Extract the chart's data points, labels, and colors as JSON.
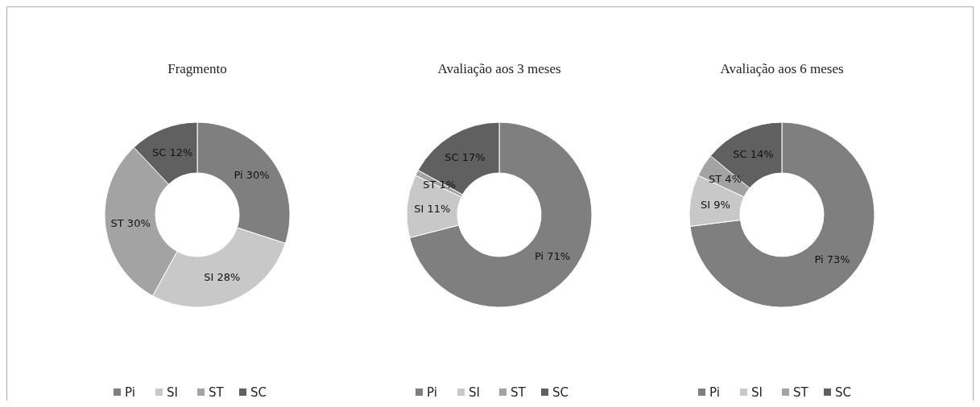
{
  "chart_data": [
    {
      "type": "donut",
      "title": "Fragmento",
      "categories": [
        "Pi",
        "SI",
        "ST",
        "SC"
      ],
      "values": [
        30,
        28,
        30,
        12
      ],
      "value_labels": [
        "Pi 30%",
        "SI 28%",
        "ST 30%",
        "SC 12%"
      ],
      "colors": [
        "#7f7f7f",
        "#c8c8c8",
        "#a3a3a3",
        "#606060"
      ],
      "legend": "bottom"
    },
    {
      "type": "donut",
      "title": "Avaliação aos 3 meses",
      "categories": [
        "Pi",
        "SI",
        "ST",
        "SC"
      ],
      "values": [
        71,
        11,
        1,
        17
      ],
      "value_labels": [
        "Pi 71%",
        "SI 11%",
        "ST 1%",
        "SC 17%"
      ],
      "colors": [
        "#7f7f7f",
        "#c8c8c8",
        "#a3a3a3",
        "#606060"
      ],
      "legend": "bottom"
    },
    {
      "type": "donut",
      "title": "Avaliação aos 6 meses",
      "categories": [
        "Pi",
        "SI",
        "ST",
        "SC"
      ],
      "values": [
        73,
        9,
        4,
        14
      ],
      "value_labels": [
        "Pi 73%",
        "SI 9%",
        "ST 4%",
        "SC 14%"
      ],
      "colors": [
        "#7f7f7f",
        "#c8c8c8",
        "#a3a3a3",
        "#606060"
      ],
      "legend": "bottom"
    }
  ]
}
